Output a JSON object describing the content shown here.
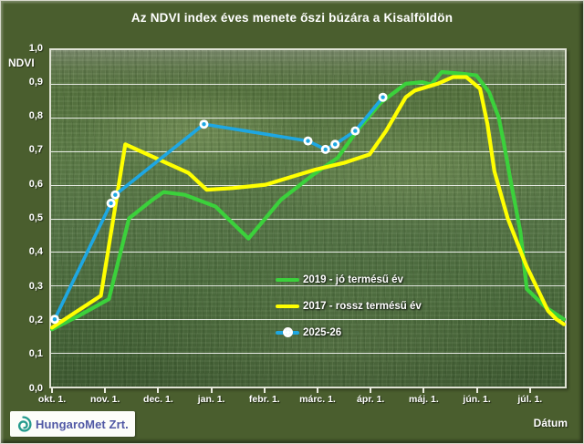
{
  "chart_data": {
    "type": "line",
    "title": "Az NDVI index éves menete őszi búzára a Kisalföldön",
    "ylabel": "NDVI",
    "xlabel": "Dátum",
    "ylim": [
      0.0,
      1.0
    ],
    "x_months_range": [
      0,
      9.65
    ],
    "grid": "horizontal white lines every 0.1 NDVI",
    "legend_position": "center of plot area",
    "y_tick_labels": [
      "1,0",
      "0,9",
      "0,8",
      "0,7",
      "0,6",
      "0,5",
      "0,4",
      "0,3",
      "0,2",
      "0,1",
      "0,0"
    ],
    "x_tick_labels": [
      "okt. 1.",
      "nov. 1.",
      "dec. 1.",
      "jan. 1.",
      "febr. 1.",
      "márc. 1.",
      "ápr. 1.",
      "máj. 1.",
      "jún. 1.",
      "júl. 1."
    ],
    "series": [
      {
        "name": "2019 - jó termésű év",
        "color": "#3bd13b",
        "marker": "none",
        "points_month_ndvi": [
          [
            0.0,
            0.17
          ],
          [
            0.5,
            0.21
          ],
          [
            1.07,
            0.26
          ],
          [
            1.45,
            0.5
          ],
          [
            1.89,
            0.555
          ],
          [
            2.1,
            0.578
          ],
          [
            2.5,
            0.57
          ],
          [
            3.08,
            0.535
          ],
          [
            3.7,
            0.44
          ],
          [
            4.31,
            0.555
          ],
          [
            4.92,
            0.63
          ],
          [
            5.38,
            0.68
          ],
          [
            5.74,
            0.76
          ],
          [
            6.2,
            0.845
          ],
          [
            6.66,
            0.9
          ],
          [
            6.97,
            0.905
          ],
          [
            7.14,
            0.898
          ],
          [
            7.34,
            0.935
          ],
          [
            7.72,
            0.93
          ],
          [
            7.99,
            0.925
          ],
          [
            8.23,
            0.875
          ],
          [
            8.41,
            0.8
          ],
          [
            8.5,
            0.73
          ],
          [
            8.62,
            0.625
          ],
          [
            8.82,
            0.46
          ],
          [
            8.94,
            0.29
          ],
          [
            9.3,
            0.235
          ],
          [
            9.64,
            0.2
          ]
        ]
      },
      {
        "name": "2017 - rossz termésű év",
        "color": "#ffff00",
        "marker": "none",
        "points_month_ndvi": [
          [
            0.0,
            0.175
          ],
          [
            0.92,
            0.27
          ],
          [
            1.38,
            0.72
          ],
          [
            2.57,
            0.635
          ],
          [
            2.91,
            0.585
          ],
          [
            3.4,
            0.59
          ],
          [
            4.02,
            0.6
          ],
          [
            4.96,
            0.645
          ],
          [
            5.5,
            0.665
          ],
          [
            5.98,
            0.69
          ],
          [
            6.29,
            0.76
          ],
          [
            6.66,
            0.86
          ],
          [
            6.83,
            0.88
          ],
          [
            7.26,
            0.9
          ],
          [
            7.55,
            0.92
          ],
          [
            7.8,
            0.92
          ],
          [
            8.06,
            0.885
          ],
          [
            8.2,
            0.78
          ],
          [
            8.33,
            0.64
          ],
          [
            8.58,
            0.5
          ],
          [
            8.93,
            0.36
          ],
          [
            9.34,
            0.225
          ],
          [
            9.5,
            0.2
          ],
          [
            9.64,
            0.185
          ]
        ]
      },
      {
        "name": "2025-26",
        "color": "#1ea7e2",
        "marker": "white circle with blue center dot",
        "points_month_ndvi": [
          [
            0.05,
            0.2
          ],
          [
            1.11,
            0.545
          ],
          [
            1.19,
            0.57
          ],
          [
            2.86,
            0.78
          ],
          [
            4.82,
            0.73
          ],
          [
            5.15,
            0.705
          ],
          [
            5.33,
            0.72
          ],
          [
            5.71,
            0.76
          ],
          [
            6.23,
            0.86
          ]
        ]
      }
    ]
  },
  "footer": {
    "logo_text": "HungaroMet Zrt.",
    "xlabel": "Dátum"
  },
  "colors": {
    "frame_background": "#4a5e2e",
    "plot_field_green": "#55764a",
    "grid": "#ffffff",
    "text": "#ffffff",
    "logo_text": "#5058a5",
    "logo_swirl": "#259b8e"
  }
}
